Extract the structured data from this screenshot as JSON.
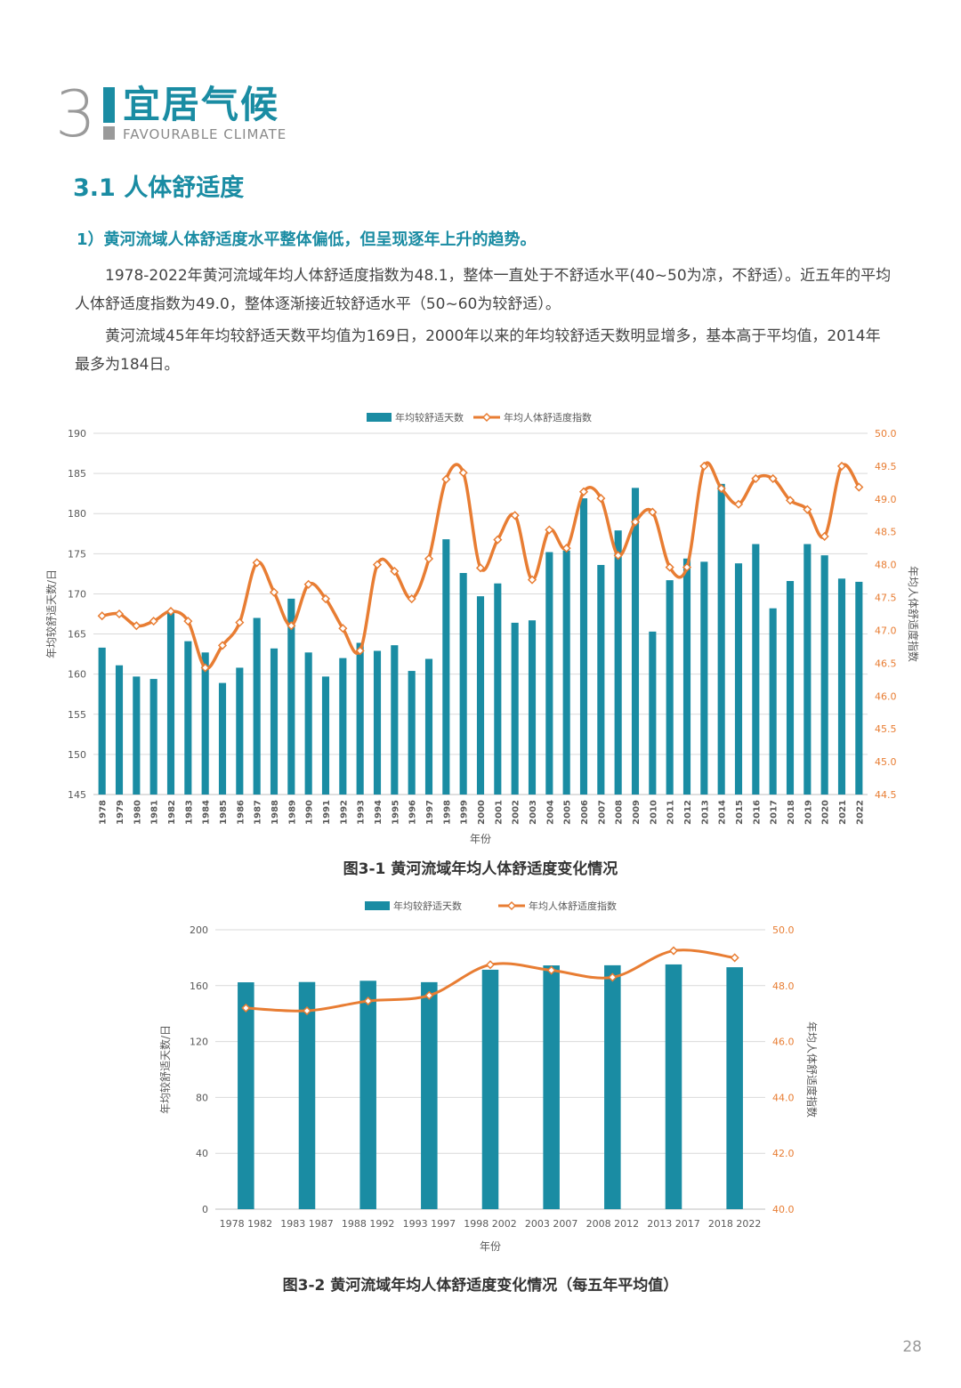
{
  "header": {
    "number": "3",
    "title": "宜居气候",
    "subtitle": "FAVOURABLE CLIMATE"
  },
  "section_title": "3.1 人体舒适度",
  "heading1": "1）黄河流域人体舒适度水平整体偏低，但呈现逐年上升的趋势。",
  "paragraphs": [
    "1978-2022年黄河流域年均人体舒适度指数为48.1，整体一直处于不舒适水平(40~50为凉，不舒适）。近五年的平均人体舒适度指数为49.0，整体逐渐接近较舒适水平（50~60为较舒适）。",
    "黄河流域45年年均较舒适天数平均值为169日，2000年以来的年均较舒适天数明显增多，基本高于平均值，2014年最多为184日。"
  ],
  "chart_data": [
    {
      "type": "bar",
      "legend": [
        "年均较舒适天数",
        "年均人体舒适度指数"
      ],
      "legend_position": "top-center",
      "categories": [
        "1978",
        "1979",
        "1980",
        "1981",
        "1982",
        "1983",
        "1984",
        "1985",
        "1986",
        "1987",
        "1988",
        "1989",
        "1990",
        "1991",
        "1992",
        "1993",
        "1994",
        "1995",
        "1996",
        "1997",
        "1998",
        "1999",
        "2000",
        "2001",
        "2002",
        "2003",
        "2004",
        "2005",
        "2006",
        "2007",
        "2008",
        "2009",
        "2010",
        "2011",
        "2012",
        "2013",
        "2014",
        "2015",
        "2016",
        "2017",
        "2018",
        "2019",
        "2020",
        "2021",
        "2022"
      ],
      "series": [
        {
          "name": "年均较舒适天数",
          "type": "bar",
          "axis": "left",
          "color": "#1a8ca3",
          "values": [
            163.3,
            161.1,
            159.7,
            159.4,
            167.6,
            164.1,
            162.7,
            158.9,
            160.8,
            167.0,
            163.2,
            169.4,
            162.7,
            159.7,
            162.0,
            163.9,
            162.9,
            163.6,
            160.4,
            161.9,
            176.8,
            172.6,
            169.7,
            171.3,
            166.4,
            166.7,
            175.2,
            175.4,
            181.9,
            173.6,
            177.9,
            183.2,
            165.3,
            171.7,
            174.4,
            174.0,
            183.7,
            173.8,
            176.2,
            168.2,
            171.6,
            176.2,
            174.8,
            171.9,
            171.5
          ]
        },
        {
          "name": "年均人体舒适度指数",
          "type": "line",
          "axis": "right",
          "color": "#e87d33",
          "values": [
            47.22,
            47.25,
            47.07,
            47.14,
            47.29,
            47.14,
            46.43,
            46.77,
            47.12,
            48.03,
            47.58,
            47.07,
            47.7,
            47.48,
            47.03,
            46.69,
            48.0,
            47.9,
            47.48,
            48.09,
            49.3,
            49.4,
            47.95,
            48.38,
            48.75,
            47.77,
            48.53,
            48.25,
            49.11,
            49.01,
            48.14,
            48.65,
            48.8,
            47.96,
            47.96,
            49.5,
            49.16,
            48.92,
            49.31,
            49.31,
            48.98,
            48.84,
            48.43,
            49.5,
            49.18
          ]
        }
      ],
      "xlabel": "年份",
      "ylabel_left": "年均较舒适天数/日",
      "ylabel_right": "年均人体舒适度指数",
      "ylim_left": [
        145,
        190
      ],
      "yticks_left": [
        "145",
        "150",
        "155",
        "160",
        "165",
        "170",
        "175",
        "180",
        "185",
        "190"
      ],
      "ylim_right": [
        44.5,
        50.0
      ],
      "yticks_right": [
        "44.5",
        "45.0",
        "45.5",
        "46.0",
        "46.5",
        "47.0",
        "47.5",
        "48.0",
        "48.5",
        "49.0",
        "49.5",
        "50.0"
      ],
      "grid": true,
      "caption": "图3-1 黄河流域年均人体舒适度变化情况"
    },
    {
      "type": "bar",
      "legend": [
        "年均较舒适天数",
        "年均人体舒适度指数"
      ],
      "legend_position": "top-center",
      "categories": [
        "1978 1982",
        "1983 1987",
        "1988 1992",
        "1993 1997",
        "1998 2002",
        "2003 2007",
        "2008 2012",
        "2013 2017",
        "2018 2022"
      ],
      "series": [
        {
          "name": "年均较舒适天数",
          "type": "bar",
          "axis": "left",
          "color": "#1a8ca3",
          "values": [
            162.4,
            162.6,
            163.5,
            162.5,
            171.4,
            174.5,
            174.6,
            175.2,
            173.2
          ]
        },
        {
          "name": "年均人体舒适度指数",
          "type": "line",
          "axis": "right",
          "color": "#e87d33",
          "values": [
            47.2,
            47.1,
            47.45,
            47.65,
            48.75,
            48.55,
            48.3,
            49.25,
            49.0
          ]
        }
      ],
      "xlabel": "年份",
      "ylabel_left": "年均较舒适天数/日",
      "ylabel_right": "年均人体舒适度指数",
      "ylim_left": [
        0,
        200
      ],
      "yticks_left": [
        "0",
        "40",
        "80",
        "120",
        "160",
        "200"
      ],
      "ylim_right": [
        40.0,
        50.0
      ],
      "yticks_right": [
        "40.0",
        "42.0",
        "44.0",
        "46.0",
        "48.0",
        "50.0"
      ],
      "grid": true,
      "caption": "图3-2 黄河流域年均人体舒适度变化情况（每五年平均值）"
    }
  ],
  "page_number": "28"
}
